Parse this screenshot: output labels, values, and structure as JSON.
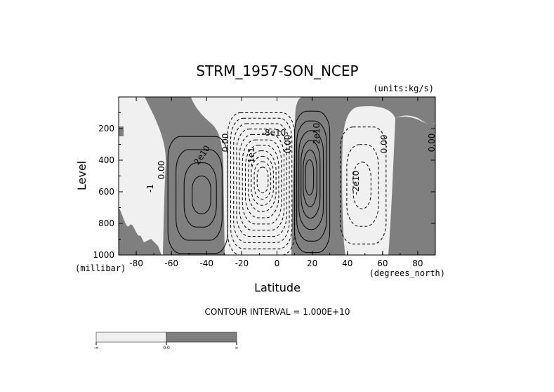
{
  "chart_data": {
    "type": "contour",
    "title": "STRM_1957-SON_NCEP",
    "units_label": "(units:kg/s)",
    "xlabel": "Latitude",
    "ylabel": "Level",
    "x_unit_label": "(degrees_north)",
    "y_unit_label": "(millibar)",
    "xlim": [
      -90,
      90
    ],
    "ylim": [
      1000,
      0
    ],
    "y_scale": "linear-pressure-inverted",
    "x_ticks": [
      -80,
      -60,
      -40,
      -20,
      0,
      20,
      40,
      60,
      80
    ],
    "x_tick_labels": [
      "-80",
      "-60",
      "-40",
      "-20",
      "0",
      "20",
      "40",
      "60",
      "80"
    ],
    "y_ticks": [
      200,
      400,
      600,
      800,
      1000
    ],
    "y_tick_labels": [
      "200",
      "400",
      "600",
      "800",
      "1000"
    ],
    "contour_interval_text": "CONTOUR INTERVAL = 1.000E+10",
    "contour_labels": [
      "2e10",
      "0.00",
      "-8e10",
      "-1e1",
      "0.00",
      "2e10",
      "0.00",
      "-2e10",
      "0.00",
      "0.00",
      "-1"
    ],
    "shading": {
      "negative_color": "#f0f0f0",
      "positive_color": "#7f7f7f"
    },
    "colorbar": {
      "labels": [
        "-∞",
        "0.0",
        "∞"
      ]
    },
    "cells": [
      {
        "center_lat": -42,
        "center_lev": 620,
        "sign": "positive",
        "peak": 4,
        "label": "2e10"
      },
      {
        "center_lat": -8,
        "center_lev": 520,
        "sign": "negative",
        "peak": 11,
        "label": "-8e10"
      },
      {
        "center_lat": 18,
        "center_lev": 500,
        "sign": "positive",
        "peak": 6,
        "label": "2e10"
      },
      {
        "center_lat": 48,
        "center_lev": 560,
        "sign": "negative",
        "peak": 3,
        "label": "-2e10"
      }
    ]
  }
}
